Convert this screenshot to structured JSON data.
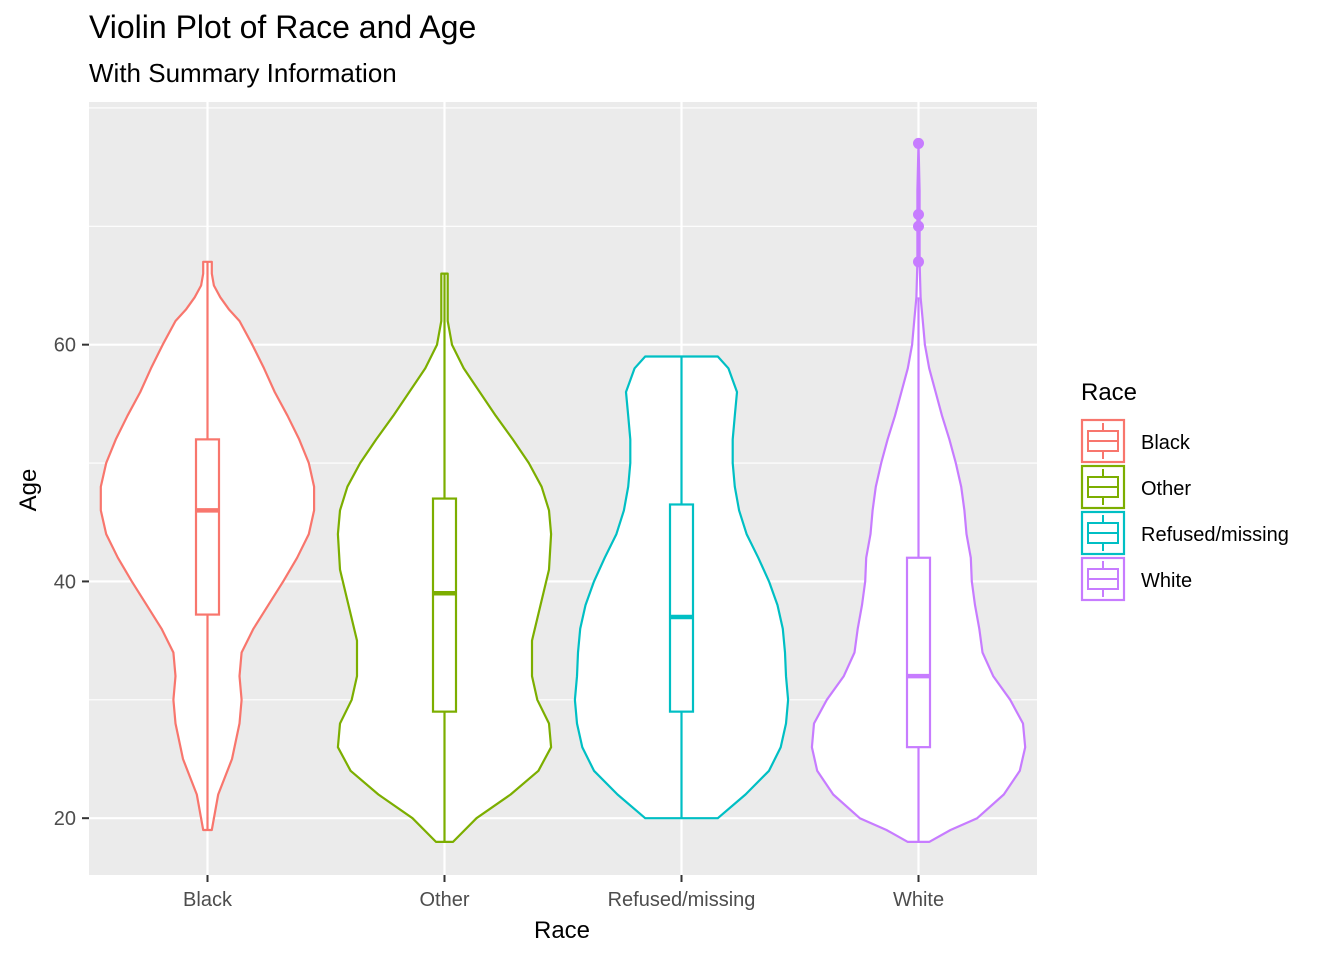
{
  "chart_data": {
    "type": "violin",
    "title": "Violin Plot of Race and Age",
    "subtitle": "With Summary Information",
    "xlabel": "Race",
    "ylabel": "Age",
    "ylim": [
      15.2,
      80.5
    ],
    "yticks": [
      20,
      40,
      60
    ],
    "grid": true,
    "legend": {
      "title": "Race",
      "position": "right"
    },
    "categories": [
      "Black",
      "Other",
      "Refused/missing",
      "White"
    ],
    "series": [
      {
        "name": "Black",
        "color": "#F8766D",
        "min": 19,
        "max": 67,
        "box": {
          "q1": 37.2,
          "median": 46,
          "q3": 52
        },
        "whisker": [
          19,
          67
        ],
        "outliers": [],
        "density": [
          [
            19,
            0.04
          ],
          [
            22,
            0.1
          ],
          [
            25,
            0.23
          ],
          [
            28,
            0.3
          ],
          [
            30,
            0.32
          ],
          [
            32,
            0.3
          ],
          [
            34,
            0.32
          ],
          [
            36,
            0.43
          ],
          [
            38,
            0.57
          ],
          [
            40,
            0.71
          ],
          [
            42,
            0.84
          ],
          [
            44,
            0.95
          ],
          [
            46,
            1.0
          ],
          [
            48,
            1.0
          ],
          [
            50,
            0.95
          ],
          [
            52,
            0.86
          ],
          [
            54,
            0.75
          ],
          [
            56,
            0.63
          ],
          [
            58,
            0.53
          ],
          [
            60,
            0.42
          ],
          [
            62,
            0.3
          ],
          [
            63,
            0.2
          ],
          [
            64,
            0.12
          ],
          [
            65,
            0.06
          ],
          [
            66,
            0.04
          ],
          [
            67,
            0.04
          ]
        ]
      },
      {
        "name": "Other",
        "color": "#7CAE00",
        "min": 18,
        "max": 66,
        "box": {
          "q1": 29,
          "median": 39,
          "q3": 47
        },
        "whisker": [
          18,
          66
        ],
        "outliers": [],
        "density": [
          [
            18,
            0.08
          ],
          [
            20,
            0.3
          ],
          [
            22,
            0.62
          ],
          [
            24,
            0.88
          ],
          [
            26,
            1.0
          ],
          [
            28,
            0.98
          ],
          [
            30,
            0.87
          ],
          [
            32,
            0.82
          ],
          [
            35,
            0.82
          ],
          [
            38,
            0.9
          ],
          [
            41,
            0.98
          ],
          [
            44,
            1.0
          ],
          [
            46,
            0.98
          ],
          [
            48,
            0.91
          ],
          [
            50,
            0.79
          ],
          [
            52,
            0.64
          ],
          [
            54,
            0.48
          ],
          [
            56,
            0.33
          ],
          [
            58,
            0.18
          ],
          [
            60,
            0.07
          ],
          [
            62,
            0.03
          ],
          [
            64,
            0.03
          ],
          [
            66,
            0.03
          ]
        ]
      },
      {
        "name": "Refused/missing",
        "color": "#00BFC4",
        "min": 20,
        "max": 59,
        "box": {
          "q1": 29,
          "median": 37,
          "q3": 46.5
        },
        "whisker": [
          20,
          59
        ],
        "outliers": [],
        "density": [
          [
            20,
            0.34
          ],
          [
            22,
            0.6
          ],
          [
            24,
            0.82
          ],
          [
            26,
            0.93
          ],
          [
            28,
            0.98
          ],
          [
            30,
            1.0
          ],
          [
            32,
            0.98
          ],
          [
            34,
            0.97
          ],
          [
            36,
            0.95
          ],
          [
            38,
            0.9
          ],
          [
            40,
            0.82
          ],
          [
            42,
            0.72
          ],
          [
            44,
            0.61
          ],
          [
            46,
            0.54
          ],
          [
            48,
            0.5
          ],
          [
            50,
            0.48
          ],
          [
            52,
            0.48
          ],
          [
            54,
            0.5
          ],
          [
            56,
            0.52
          ],
          [
            58,
            0.44
          ],
          [
            59,
            0.34
          ]
        ]
      },
      {
        "name": "White",
        "color": "#C77CFF",
        "min": 18,
        "max": 77,
        "box": {
          "q1": 26,
          "median": 32,
          "q3": 42
        },
        "whisker": [
          18,
          64
        ],
        "outliers": [
          67,
          70,
          71,
          77
        ],
        "density": [
          [
            18,
            0.1
          ],
          [
            19,
            0.3
          ],
          [
            20,
            0.55
          ],
          [
            22,
            0.8
          ],
          [
            24,
            0.95
          ],
          [
            26,
            1.0
          ],
          [
            28,
            0.98
          ],
          [
            30,
            0.86
          ],
          [
            32,
            0.7
          ],
          [
            34,
            0.6
          ],
          [
            36,
            0.57
          ],
          [
            38,
            0.53
          ],
          [
            40,
            0.5
          ],
          [
            42,
            0.49
          ],
          [
            44,
            0.45
          ],
          [
            46,
            0.43
          ],
          [
            48,
            0.4
          ],
          [
            50,
            0.35
          ],
          [
            52,
            0.29
          ],
          [
            54,
            0.22
          ],
          [
            56,
            0.16
          ],
          [
            58,
            0.1
          ],
          [
            60,
            0.06
          ],
          [
            62,
            0.04
          ],
          [
            64,
            0.02
          ],
          [
            67,
            0.01
          ],
          [
            70,
            0.01
          ],
          [
            73,
            0.01
          ],
          [
            77,
            0.0
          ]
        ]
      }
    ]
  }
}
